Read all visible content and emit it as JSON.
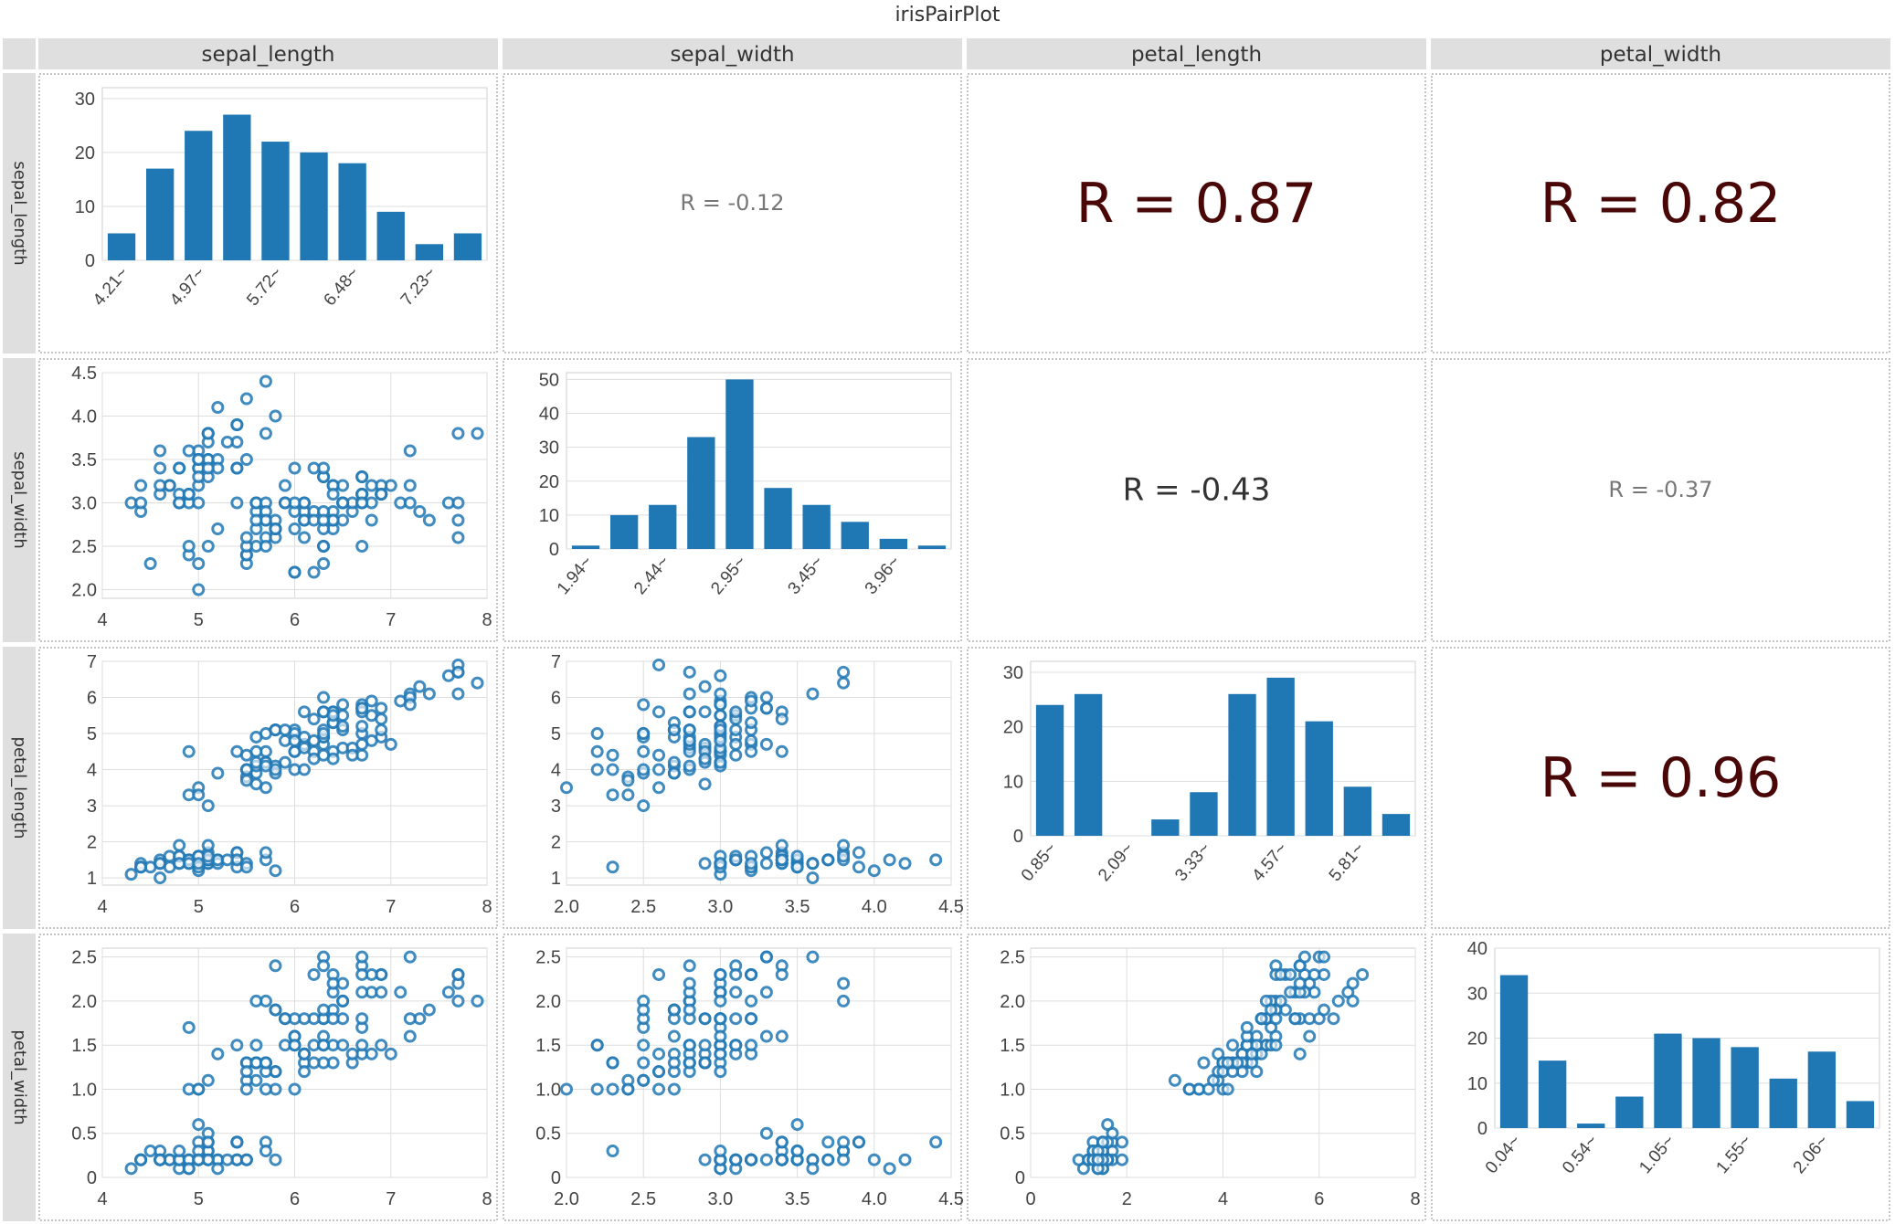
{
  "title": "irisPairPlot",
  "variables": [
    "sepal_length",
    "sepal_width",
    "petal_length",
    "petal_width"
  ],
  "colors": {
    "mark": "#1f77b4",
    "strip_bg": "#dfdfdf",
    "grid": "#dddddd",
    "axis_text": "#444444",
    "r_strong": "#4a0707",
    "r_medium": "#333333",
    "r_weak": "#777777"
  },
  "chart_data": {
    "type": "pair_plot",
    "title": "irisPairPlot",
    "variables": [
      "sepal_length",
      "sepal_width",
      "petal_length",
      "petal_width"
    ],
    "histograms": [
      {
        "variable": "sepal_length",
        "bin_labels": [
          "4.21~",
          "4.97~",
          "5.72~",
          "6.48~",
          "7.23~"
        ],
        "bin_label_every": 2,
        "values": [
          5,
          17,
          24,
          27,
          22,
          20,
          18,
          9,
          3,
          5
        ],
        "ylim": [
          0,
          32
        ],
        "yticks": [
          0,
          10,
          20,
          30
        ]
      },
      {
        "variable": "sepal_width",
        "bin_labels": [
          "1.94~",
          "2.44~",
          "2.95~",
          "3.45~",
          "3.96~"
        ],
        "bin_label_every": 2,
        "values": [
          1,
          10,
          13,
          33,
          50,
          18,
          13,
          8,
          3,
          1
        ],
        "ylim": [
          0,
          52
        ],
        "yticks": [
          0,
          10,
          20,
          30,
          40,
          50
        ]
      },
      {
        "variable": "petal_length",
        "bin_labels": [
          "0.85~",
          "2.09~",
          "3.33~",
          "4.57~",
          "5.81~"
        ],
        "bin_label_every": 2,
        "values": [
          24,
          26,
          0,
          3,
          8,
          26,
          29,
          21,
          9,
          4
        ],
        "ylim": [
          0,
          32
        ],
        "yticks": [
          0,
          10,
          20,
          30
        ]
      },
      {
        "variable": "petal_width",
        "bin_labels": [
          "0.04~",
          "0.54~",
          "1.05~",
          "1.55~",
          "2.06~"
        ],
        "bin_label_every": 2,
        "values": [
          34,
          15,
          1,
          7,
          21,
          20,
          18,
          11,
          17,
          6
        ],
        "ylim": [
          0,
          40
        ],
        "yticks": [
          0,
          10,
          20,
          30,
          40
        ]
      }
    ],
    "axes": {
      "sepal_length": {
        "range": [
          4,
          8
        ],
        "ticks": [
          4,
          5,
          6,
          7,
          8
        ],
        "tick_labels": [
          "4",
          "5",
          "6",
          "7",
          "8"
        ]
      },
      "sepal_width": {
        "range": [
          1.9,
          4.5
        ],
        "ticks": [
          2.0,
          2.5,
          3.0,
          3.5,
          4.0,
          4.5
        ],
        "tick_labels": [
          "2.0",
          "2.5",
          "3.0",
          "3.5",
          "4.0",
          "4.5"
        ]
      },
      "petal_length": {
        "range": [
          0.8,
          7.0
        ],
        "ticks": [
          1,
          2,
          3,
          4,
          5,
          6,
          7
        ],
        "tick_labels": [
          "1",
          "2",
          "3",
          "4",
          "5",
          "6",
          "7"
        ]
      },
      "petal_width": {
        "range": [
          0,
          2.6
        ],
        "ticks": [
          0,
          0.5,
          1.0,
          1.5,
          2.0,
          2.5
        ],
        "tick_labels": [
          "0",
          "0.5",
          "1.0",
          "1.5",
          "2.0",
          "2.5"
        ]
      }
    },
    "x_axes": {
      "sepal_length": {
        "range": [
          4,
          8
        ],
        "ticks": [
          4,
          5,
          6,
          7,
          8
        ],
        "tick_labels": [
          "4",
          "5",
          "6",
          "7",
          "8"
        ]
      },
      "sepal_width": {
        "range": [
          2.0,
          4.5
        ],
        "ticks": [
          2.0,
          2.5,
          3.0,
          3.5,
          4.0,
          4.5
        ],
        "tick_labels": [
          "2.0",
          "2.5",
          "3.0",
          "3.5",
          "4.0",
          "4.5"
        ]
      },
      "petal_length": {
        "range": [
          0,
          8
        ],
        "ticks": [
          0,
          2,
          4,
          6,
          8
        ],
        "tick_labels": [
          "0",
          "2",
          "4",
          "6",
          "8"
        ]
      }
    },
    "correlations": [
      {
        "row": "sepal_length",
        "col": "sepal_width",
        "r": -0.12,
        "label": "R = -0.12"
      },
      {
        "row": "sepal_length",
        "col": "petal_length",
        "r": 0.87,
        "label": "R = 0.87"
      },
      {
        "row": "sepal_length",
        "col": "petal_width",
        "r": 0.82,
        "label": "R = 0.82"
      },
      {
        "row": "sepal_width",
        "col": "petal_length",
        "r": -0.43,
        "label": "R = -0.43"
      },
      {
        "row": "sepal_width",
        "col": "petal_width",
        "r": -0.37,
        "label": "R = -0.37"
      },
      {
        "row": "petal_length",
        "col": "petal_width",
        "r": 0.96,
        "label": "R = 0.96"
      }
    ],
    "samples": [
      [
        5.1,
        3.5,
        1.4,
        0.2
      ],
      [
        4.9,
        3.0,
        1.4,
        0.2
      ],
      [
        4.7,
        3.2,
        1.3,
        0.2
      ],
      [
        4.6,
        3.1,
        1.5,
        0.2
      ],
      [
        5.0,
        3.6,
        1.4,
        0.2
      ],
      [
        5.4,
        3.9,
        1.7,
        0.4
      ],
      [
        4.6,
        3.4,
        1.4,
        0.3
      ],
      [
        5.0,
        3.4,
        1.5,
        0.2
      ],
      [
        4.4,
        2.9,
        1.4,
        0.2
      ],
      [
        4.9,
        3.1,
        1.5,
        0.1
      ],
      [
        5.4,
        3.7,
        1.5,
        0.2
      ],
      [
        4.8,
        3.4,
        1.6,
        0.2
      ],
      [
        4.8,
        3.0,
        1.4,
        0.1
      ],
      [
        4.3,
        3.0,
        1.1,
        0.1
      ],
      [
        5.8,
        4.0,
        1.2,
        0.2
      ],
      [
        5.7,
        4.4,
        1.5,
        0.4
      ],
      [
        5.4,
        3.9,
        1.3,
        0.4
      ],
      [
        5.1,
        3.5,
        1.4,
        0.3
      ],
      [
        5.7,
        3.8,
        1.7,
        0.3
      ],
      [
        5.1,
        3.8,
        1.5,
        0.3
      ],
      [
        5.4,
        3.4,
        1.7,
        0.2
      ],
      [
        5.1,
        3.7,
        1.5,
        0.4
      ],
      [
        4.6,
        3.6,
        1.0,
        0.2
      ],
      [
        5.1,
        3.3,
        1.7,
        0.5
      ],
      [
        4.8,
        3.4,
        1.9,
        0.2
      ],
      [
        5.0,
        3.0,
        1.6,
        0.2
      ],
      [
        5.0,
        3.4,
        1.6,
        0.4
      ],
      [
        5.2,
        3.5,
        1.5,
        0.2
      ],
      [
        5.2,
        3.4,
        1.4,
        0.2
      ],
      [
        4.7,
        3.2,
        1.6,
        0.2
      ],
      [
        4.8,
        3.1,
        1.6,
        0.2
      ],
      [
        5.4,
        3.4,
        1.5,
        0.4
      ],
      [
        5.2,
        4.1,
        1.5,
        0.1
      ],
      [
        5.5,
        4.2,
        1.4,
        0.2
      ],
      [
        4.9,
        3.1,
        1.5,
        0.2
      ],
      [
        5.0,
        3.2,
        1.2,
        0.2
      ],
      [
        5.5,
        3.5,
        1.3,
        0.2
      ],
      [
        4.9,
        3.6,
        1.4,
        0.1
      ],
      [
        4.4,
        3.0,
        1.3,
        0.2
      ],
      [
        5.1,
        3.4,
        1.5,
        0.2
      ],
      [
        5.0,
        3.5,
        1.3,
        0.3
      ],
      [
        4.5,
        2.3,
        1.3,
        0.3
      ],
      [
        4.4,
        3.2,
        1.3,
        0.2
      ],
      [
        5.0,
        3.5,
        1.6,
        0.6
      ],
      [
        5.1,
        3.8,
        1.9,
        0.4
      ],
      [
        4.8,
        3.0,
        1.4,
        0.3
      ],
      [
        5.1,
        3.8,
        1.6,
        0.2
      ],
      [
        4.6,
        3.2,
        1.4,
        0.2
      ],
      [
        5.3,
        3.7,
        1.5,
        0.2
      ],
      [
        5.0,
        3.3,
        1.4,
        0.2
      ],
      [
        7.0,
        3.2,
        4.7,
        1.4
      ],
      [
        6.4,
        3.2,
        4.5,
        1.5
      ],
      [
        6.9,
        3.1,
        4.9,
        1.5
      ],
      [
        5.5,
        2.3,
        4.0,
        1.3
      ],
      [
        6.5,
        2.8,
        4.6,
        1.5
      ],
      [
        5.7,
        2.8,
        4.5,
        1.3
      ],
      [
        6.3,
        3.3,
        4.7,
        1.6
      ],
      [
        4.9,
        2.4,
        3.3,
        1.0
      ],
      [
        6.6,
        2.9,
        4.6,
        1.3
      ],
      [
        5.2,
        2.7,
        3.9,
        1.4
      ],
      [
        5.0,
        2.0,
        3.5,
        1.0
      ],
      [
        5.9,
        3.0,
        4.2,
        1.5
      ],
      [
        6.0,
        2.2,
        4.0,
        1.0
      ],
      [
        6.1,
        2.9,
        4.7,
        1.4
      ],
      [
        5.6,
        2.9,
        3.6,
        1.3
      ],
      [
        6.7,
        3.1,
        4.4,
        1.4
      ],
      [
        5.6,
        3.0,
        4.5,
        1.5
      ],
      [
        5.8,
        2.7,
        4.1,
        1.0
      ],
      [
        6.2,
        2.2,
        4.5,
        1.5
      ],
      [
        5.6,
        2.5,
        3.9,
        1.1
      ],
      [
        5.9,
        3.2,
        4.8,
        1.8
      ],
      [
        6.1,
        2.8,
        4.0,
        1.3
      ],
      [
        6.3,
        2.5,
        4.9,
        1.5
      ],
      [
        6.1,
        2.8,
        4.7,
        1.2
      ],
      [
        6.4,
        2.9,
        4.3,
        1.3
      ],
      [
        6.6,
        3.0,
        4.4,
        1.4
      ],
      [
        6.8,
        2.8,
        4.8,
        1.4
      ],
      [
        6.7,
        3.0,
        5.0,
        1.7
      ],
      [
        6.0,
        2.9,
        4.5,
        1.5
      ],
      [
        5.7,
        2.6,
        3.5,
        1.0
      ],
      [
        5.5,
        2.4,
        3.8,
        1.1
      ],
      [
        5.5,
        2.4,
        3.7,
        1.0
      ],
      [
        5.8,
        2.7,
        3.9,
        1.2
      ],
      [
        6.0,
        2.7,
        5.1,
        1.6
      ],
      [
        5.4,
        3.0,
        4.5,
        1.5
      ],
      [
        6.0,
        3.4,
        4.5,
        1.6
      ],
      [
        6.7,
        3.1,
        4.7,
        1.5
      ],
      [
        6.3,
        2.3,
        4.4,
        1.3
      ],
      [
        5.6,
        3.0,
        4.1,
        1.3
      ],
      [
        5.5,
        2.5,
        4.0,
        1.3
      ],
      [
        5.5,
        2.6,
        4.4,
        1.2
      ],
      [
        6.1,
        3.0,
        4.6,
        1.4
      ],
      [
        5.8,
        2.6,
        4.0,
        1.2
      ],
      [
        5.0,
        2.3,
        3.3,
        1.0
      ],
      [
        5.6,
        2.7,
        4.2,
        1.3
      ],
      [
        5.7,
        3.0,
        4.2,
        1.2
      ],
      [
        5.7,
        2.9,
        4.2,
        1.3
      ],
      [
        6.2,
        2.9,
        4.3,
        1.3
      ],
      [
        5.1,
        2.5,
        3.0,
        1.1
      ],
      [
        5.7,
        2.8,
        4.1,
        1.3
      ],
      [
        6.3,
        3.3,
        6.0,
        2.5
      ],
      [
        5.8,
        2.7,
        5.1,
        1.9
      ],
      [
        7.1,
        3.0,
        5.9,
        2.1
      ],
      [
        6.3,
        2.9,
        5.6,
        1.8
      ],
      [
        6.5,
        3.0,
        5.8,
        2.2
      ],
      [
        7.6,
        3.0,
        6.6,
        2.1
      ],
      [
        4.9,
        2.5,
        4.5,
        1.7
      ],
      [
        7.3,
        2.9,
        6.3,
        1.8
      ],
      [
        6.7,
        2.5,
        5.8,
        1.8
      ],
      [
        7.2,
        3.6,
        6.1,
        2.5
      ],
      [
        6.5,
        3.2,
        5.1,
        2.0
      ],
      [
        6.4,
        2.7,
        5.3,
        1.9
      ],
      [
        6.8,
        3.0,
        5.5,
        2.1
      ],
      [
        5.7,
        2.5,
        5.0,
        2.0
      ],
      [
        5.8,
        2.8,
        5.1,
        2.4
      ],
      [
        6.4,
        3.2,
        5.3,
        2.3
      ],
      [
        6.5,
        3.0,
        5.5,
        1.8
      ],
      [
        7.7,
        3.8,
        6.7,
        2.2
      ],
      [
        7.7,
        2.6,
        6.9,
        2.3
      ],
      [
        6.0,
        2.2,
        5.0,
        1.5
      ],
      [
        6.9,
        3.2,
        5.7,
        2.3
      ],
      [
        5.6,
        2.8,
        4.9,
        2.0
      ],
      [
        7.7,
        2.8,
        6.7,
        2.0
      ],
      [
        6.3,
        2.7,
        4.9,
        1.8
      ],
      [
        6.7,
        3.3,
        5.7,
        2.1
      ],
      [
        7.2,
        3.2,
        6.0,
        1.8
      ],
      [
        6.2,
        2.8,
        4.8,
        1.8
      ],
      [
        6.1,
        3.0,
        4.9,
        1.8
      ],
      [
        6.4,
        2.8,
        5.6,
        2.1
      ],
      [
        7.2,
        3.0,
        5.8,
        1.6
      ],
      [
        7.4,
        2.8,
        6.1,
        1.9
      ],
      [
        7.9,
        3.8,
        6.4,
        2.0
      ],
      [
        6.4,
        2.8,
        5.6,
        2.2
      ],
      [
        6.3,
        2.8,
        5.1,
        1.5
      ],
      [
        6.1,
        2.6,
        5.6,
        1.4
      ],
      [
        7.7,
        3.0,
        6.1,
        2.3
      ],
      [
        6.3,
        3.4,
        5.6,
        2.4
      ],
      [
        6.4,
        3.1,
        5.5,
        1.8
      ],
      [
        6.0,
        3.0,
        4.8,
        1.8
      ],
      [
        6.9,
        3.1,
        5.4,
        2.1
      ],
      [
        6.7,
        3.1,
        5.6,
        2.4
      ],
      [
        6.9,
        3.1,
        5.1,
        2.3
      ],
      [
        5.8,
        2.7,
        5.1,
        1.9
      ],
      [
        6.8,
        3.2,
        5.9,
        2.3
      ],
      [
        6.7,
        3.3,
        5.7,
        2.5
      ],
      [
        6.7,
        3.0,
        5.2,
        2.3
      ],
      [
        6.3,
        2.5,
        5.0,
        1.9
      ],
      [
        6.5,
        3.0,
        5.2,
        2.0
      ],
      [
        6.2,
        3.4,
        5.4,
        2.3
      ],
      [
        5.9,
        3.0,
        5.1,
        1.8
      ]
    ]
  }
}
